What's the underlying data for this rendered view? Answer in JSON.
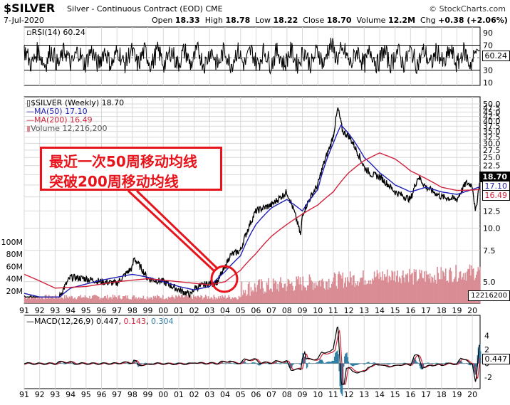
{
  "header": {
    "symbol": "$SILVER",
    "description": "Silver - Continuous Contract (EOD) CME",
    "brand": "© StockCharts.com",
    "date": "7-Jul-2020",
    "open_label": "Open",
    "open": "18.33",
    "high_label": "High",
    "high": "18.78",
    "low_label": "Low",
    "low": "18.22",
    "close_label": "Close",
    "close": "18.70",
    "volume_label": "Volume",
    "volume": "12.2M",
    "chg_label": "Chg",
    "chg": "+0.38 (+2.06%)"
  },
  "rsi_panel": {
    "legend": "RSI(14) 60.24",
    "ticks": [
      "90",
      "70",
      "50",
      "30",
      "10"
    ],
    "value_label": "60.24"
  },
  "price_panel": {
    "legend_main": "$SILVER (Weekly) 18.70",
    "legend_ma50": "MA(50) 17.10",
    "legend_ma200": "MA(200) 16.49",
    "legend_volume": "Volume 12,216,200",
    "price_ticks": [
      "50.0",
      "47.5",
      "45.0",
      "42.5",
      "40.0",
      "37.5",
      "35.0",
      "32.5",
      "30.0",
      "27.5",
      "25.0",
      "22.5",
      "20.0",
      "17.5",
      "15.0",
      "12.5",
      "10.0",
      "7.5",
      "5.0"
    ],
    "volume_ticks": [
      "100M",
      "80M",
      "60M",
      "40M",
      "20M"
    ],
    "last_price_label": "18.70",
    "ma50_label": "17.10",
    "ma200_label": "16.49",
    "volume_label": "12216200"
  },
  "macd_panel": {
    "legend_prefix": "MACD(12,26,9)",
    "macd": "0.447",
    "signal": "0.143",
    "histogram": "0.304",
    "ticks": [
      "4",
      "2",
      "0",
      "-2"
    ],
    "value_label": "0.447"
  },
  "annotation": {
    "line1": "最近一次50周移动均线",
    "line2": "突破200周移动均线"
  },
  "x_axis_years": [
    "91",
    "92",
    "93",
    "94",
    "95",
    "96",
    "97",
    "98",
    "99",
    "00",
    "01",
    "02",
    "03",
    "04",
    "05",
    "06",
    "07",
    "08",
    "09",
    "10",
    "11",
    "12",
    "13",
    "14",
    "15",
    "16",
    "17",
    "18",
    "19",
    "20"
  ],
  "colors": {
    "price": "#000000",
    "ma50": "#1f1fb4",
    "ma200": "#d2233c",
    "volume": "#d98c94",
    "histogram": "#2f7ea4",
    "annotation": "#e8141b",
    "grid": "#d9d9d9"
  },
  "chart_data": {
    "type": "line",
    "title": "$SILVER (Weekly)",
    "x_axis": "year",
    "x_range": [
      1991,
      2020.5
    ],
    "y_range_price": [
      5,
      50
    ],
    "price_scale": "log",
    "series": [
      {
        "name": "$SILVER (Weekly)",
        "x": [
          1991,
          1991.5,
          1992,
          1993,
          1993.5,
          1994,
          1995,
          1996,
          1997,
          1998,
          1998.1,
          1999,
          2000,
          2001,
          2001.8,
          2002,
          2003,
          2003.5,
          2004,
          2004.3,
          2005,
          2006,
          2006.5,
          2007,
          2008,
          2008.9,
          2009,
          2010,
          2010.8,
          2011,
          2011.3,
          2011.6,
          2012,
          2013,
          2013.5,
          2014,
          2015,
          2016,
          2016.5,
          2017,
          2018,
          2019,
          2019.6,
          2020,
          2020.2,
          2020.5
        ],
        "y": [
          4.0,
          4.0,
          3.8,
          3.6,
          4.5,
          5.3,
          5.2,
          5.0,
          4.9,
          6.0,
          6.8,
          5.2,
          5.0,
          4.5,
          4.2,
          4.6,
          4.9,
          5.0,
          6.0,
          7.0,
          7.5,
          12.5,
          13.0,
          13.5,
          16.0,
          9.0,
          12.0,
          17.5,
          29.0,
          33.0,
          47.0,
          35.0,
          33.0,
          22.0,
          20.0,
          19.5,
          16.0,
          14.5,
          19.5,
          17.0,
          15.0,
          14.5,
          18.0,
          17.5,
          12.0,
          18.7
        ]
      },
      {
        "name": "MA(50)",
        "x": [
          1991,
          1993,
          1994,
          1996,
          1998,
          1999,
          2001,
          2002,
          2003,
          2004,
          2005,
          2006,
          2007,
          2008,
          2009,
          2010,
          2011,
          2011.5,
          2012,
          2013,
          2014,
          2015,
          2016,
          2017,
          2018,
          2019,
          2020,
          2020.5
        ],
        "y": [
          4.3,
          3.9,
          4.6,
          5.1,
          5.5,
          5.3,
          4.7,
          4.5,
          4.7,
          5.7,
          7.0,
          10.5,
          13.0,
          14.5,
          12.5,
          16.5,
          30.0,
          38.0,
          34.0,
          25.0,
          20.5,
          17.5,
          16.0,
          17.0,
          16.0,
          15.5,
          16.5,
          17.1
        ]
      },
      {
        "name": "MA(200)",
        "x": [
          1991,
          1993,
          1995,
          1997,
          1999,
          2001,
          2003,
          2004,
          2005,
          2006,
          2007,
          2008,
          2009,
          2010,
          2011,
          2012,
          2013,
          2014,
          2015,
          2016,
          2017,
          2018,
          2019,
          2020,
          2020.5
        ],
        "y": [
          5.5,
          4.6,
          4.7,
          5.0,
          5.2,
          5.0,
          4.8,
          5.0,
          5.8,
          7.2,
          9.0,
          10.5,
          12.0,
          13.5,
          16.0,
          20.5,
          24.0,
          26.5,
          24.5,
          21.0,
          19.0,
          17.0,
          16.3,
          16.4,
          16.49
        ]
      }
    ],
    "volume_series": {
      "name": "Volume",
      "x_range": [
        2005,
        2020.5
      ],
      "last": 12216200,
      "ylim": [
        0,
        100000000
      ]
    },
    "rsi_series": {
      "name": "RSI(14)",
      "last": 60.24,
      "ylim": [
        10,
        90
      ]
    },
    "macd_series": {
      "name": "MACD(12,26,9)",
      "macd": 0.447,
      "signal": 0.143,
      "histogram": 0.304,
      "ylim": [
        -3,
        6
      ]
    }
  }
}
